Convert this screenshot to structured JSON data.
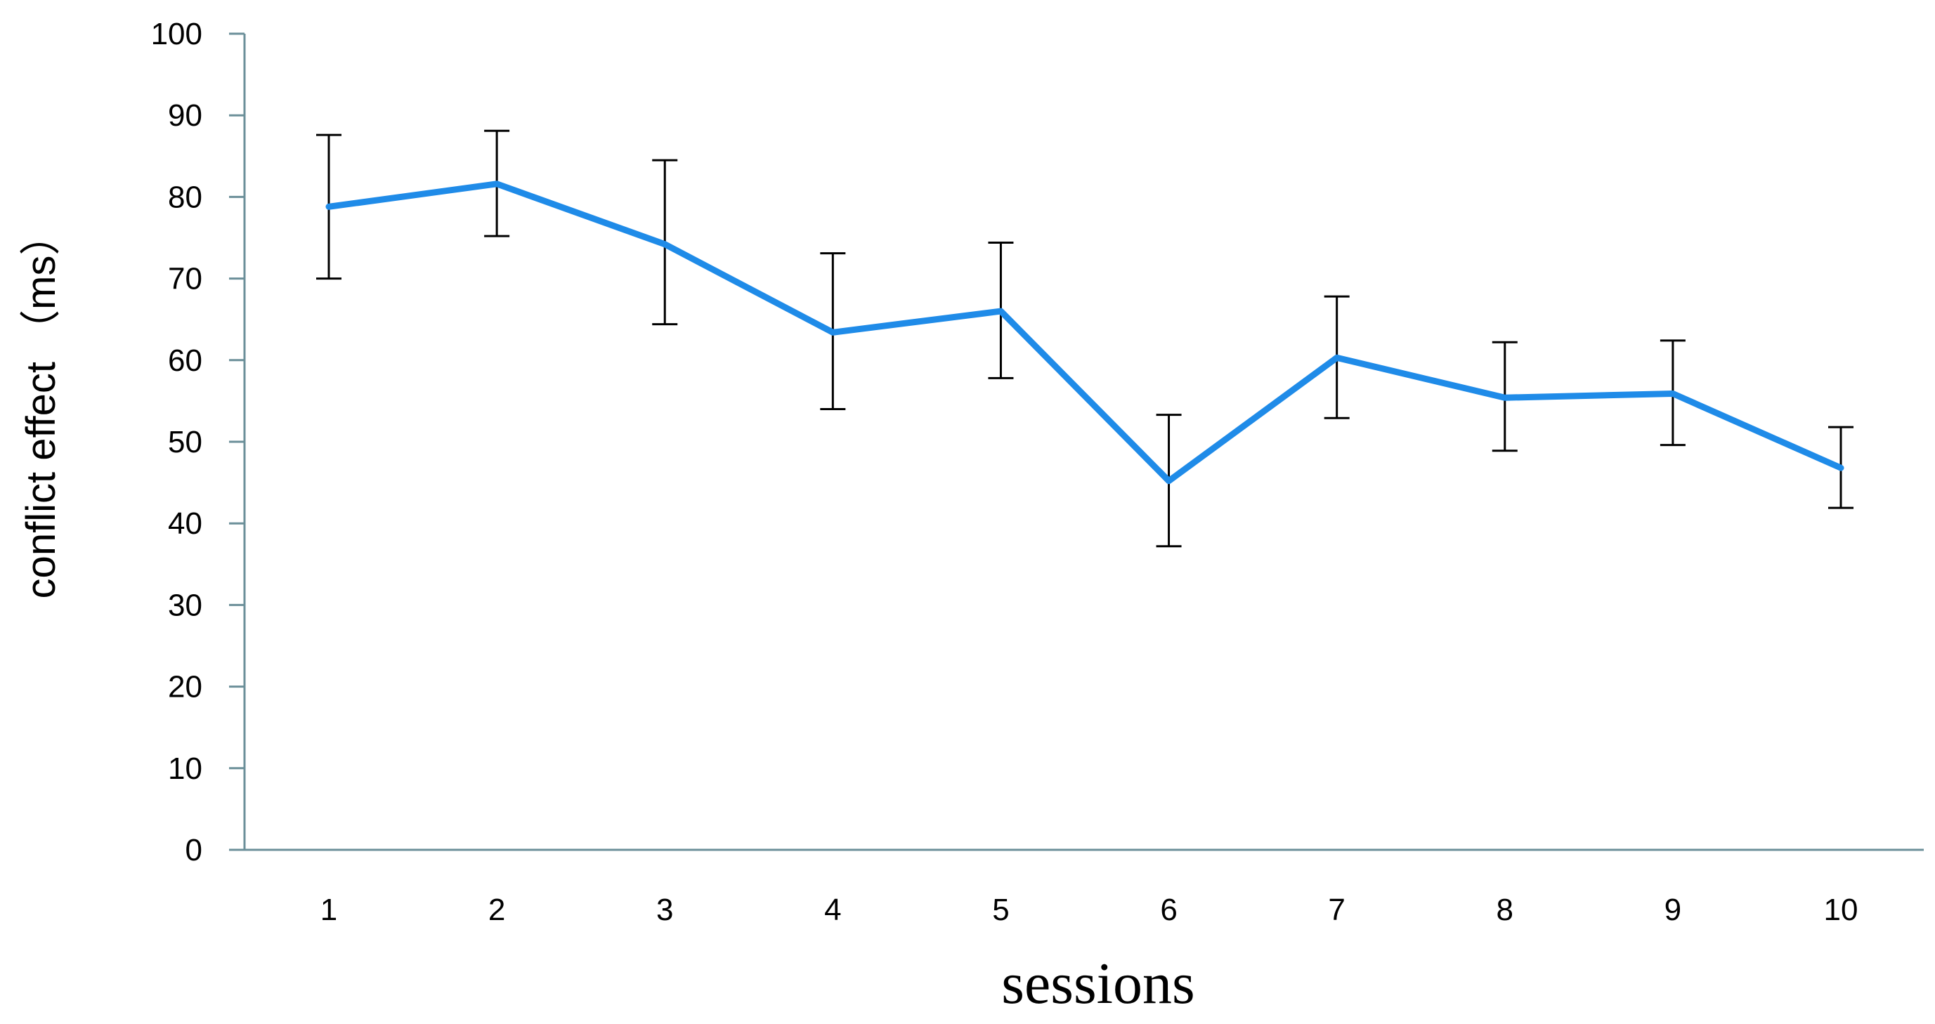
{
  "chart_data": {
    "type": "line",
    "title": "",
    "xlabel": "sessions",
    "ylabel": "conflict effect （ms）",
    "categories": [
      "1",
      "2",
      "3",
      "4",
      "5",
      "6",
      "7",
      "8",
      "9",
      "10"
    ],
    "ylim": [
      0,
      100
    ],
    "yticks": [
      0,
      10,
      20,
      30,
      40,
      50,
      60,
      70,
      80,
      90,
      100
    ],
    "series": [
      {
        "values": [
          78.8,
          81.6,
          74.2,
          63.4,
          66.0,
          45.2,
          60.3,
          55.4,
          55.9,
          46.8
        ],
        "error_low": [
          70.0,
          75.2,
          64.4,
          54.0,
          57.8,
          37.2,
          52.9,
          48.9,
          49.6,
          41.9
        ],
        "error_high": [
          87.6,
          88.1,
          84.5,
          73.1,
          74.4,
          53.3,
          67.8,
          62.2,
          62.4,
          51.8
        ]
      }
    ],
    "grid": false,
    "legend": "none",
    "colors": {
      "line": "#1f8be8",
      "axis": "#6b8f99",
      "error_bar": "#000000"
    }
  }
}
